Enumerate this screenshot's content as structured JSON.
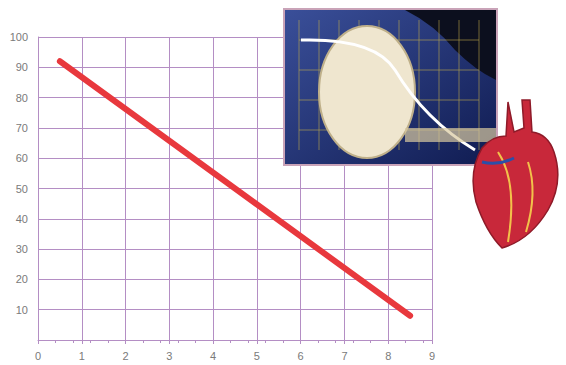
{
  "chart_data": {
    "type": "line",
    "x": [
      0.5,
      8.5
    ],
    "values": [
      92,
      8
    ],
    "color": "#e8383d",
    "xlim": [
      0,
      9
    ],
    "xticks": [
      0,
      1,
      2,
      3,
      4,
      5,
      6,
      7,
      8,
      9
    ],
    "ylim": [
      0,
      100
    ],
    "yticks": [
      10,
      20,
      30,
      40,
      50,
      60,
      70,
      80,
      90,
      100
    ],
    "grid": true
  }
}
